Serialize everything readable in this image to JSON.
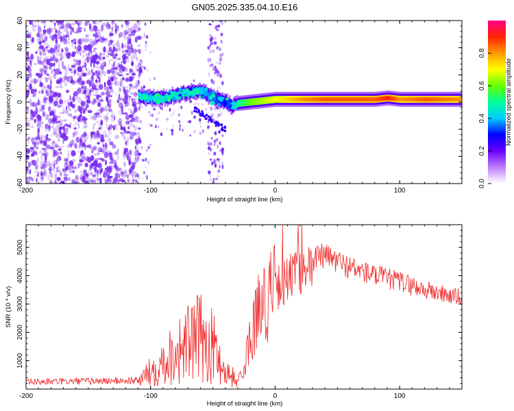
{
  "figure_title": "GN05.2025.335.04.10.E16",
  "colors": {
    "snr_line": "#ee2222",
    "speckle": "#7a2cf0",
    "frame": "#000000"
  },
  "chart_data": [
    {
      "type": "heatmap",
      "xlabel": "Height of straight line (km)",
      "ylabel": "Frequency (Hz)",
      "xlim": [
        -200,
        150
      ],
      "ylim": [
        -60,
        60
      ],
      "xticks": [
        -200,
        -100,
        0,
        100
      ],
      "xtick_labels": [
        "-200",
        "-100",
        "0",
        "100"
      ],
      "yticks": [
        -60,
        -40,
        -20,
        0,
        20,
        40,
        60
      ],
      "ytick_labels": [
        "-60",
        "-40",
        "-20",
        "0",
        "20",
        "40",
        "60"
      ],
      "colorbar": {
        "label": "Normalized spectral amplitude",
        "range": [
          0,
          1
        ],
        "ticks": [
          0.0,
          0.2,
          0.4,
          0.6,
          0.8
        ],
        "tick_labels": [
          "0.0",
          "0.2",
          "0.4",
          "0.6",
          "0.8"
        ]
      },
      "ridge": {
        "description_free": true,
        "x": [
          -110,
          -100,
          -90,
          -80,
          -70,
          -60,
          -50,
          -40,
          -35,
          -30,
          -20,
          -10,
          0,
          10,
          20,
          40,
          60,
          80,
          90,
          100,
          120,
          150
        ],
        "freq": [
          4,
          3,
          3,
          5,
          7,
          8,
          3,
          0,
          -3,
          -1,
          0,
          1,
          2,
          2,
          2,
          2,
          2,
          2,
          3,
          2,
          2,
          2
        ],
        "amplitude": [
          0.45,
          0.4,
          0.45,
          0.45,
          0.5,
          0.4,
          0.35,
          0.3,
          0.4,
          0.5,
          0.6,
          0.65,
          0.7,
          0.75,
          0.8,
          0.85,
          0.85,
          0.85,
          0.9,
          0.8,
          0.85,
          0.8
        ]
      }
    },
    {
      "type": "line",
      "xlabel": "Height of straight line (km)",
      "ylabel": "SNR (10 * v/v)",
      "xlim": [
        -200,
        150
      ],
      "ylim": [
        0,
        5800
      ],
      "xticks": [
        -200,
        -100,
        0,
        100
      ],
      "xtick_labels": [
        "-200",
        "-100",
        "0",
        "100"
      ],
      "yticks": [
        1000,
        2000,
        3000,
        4000,
        5000
      ],
      "ytick_labels": [
        "1000",
        "2000",
        "3000",
        "4000",
        "5000"
      ],
      "series": [
        {
          "name": "SNR",
          "x": [
            -200,
            -150,
            -110,
            -100,
            -90,
            -80,
            -70,
            -60,
            -50,
            -40,
            -30,
            -25,
            -20,
            -15,
            -10,
            0,
            10,
            20,
            30,
            40,
            60,
            80,
            100,
            120,
            150
          ],
          "values": [
            250,
            280,
            300,
            600,
            1000,
            1300,
            1600,
            1800,
            1500,
            600,
            300,
            700,
            1800,
            2600,
            3000,
            3500,
            3900,
            4200,
            4600,
            4700,
            4300,
            4000,
            3800,
            3500,
            3200
          ]
        }
      ]
    }
  ]
}
